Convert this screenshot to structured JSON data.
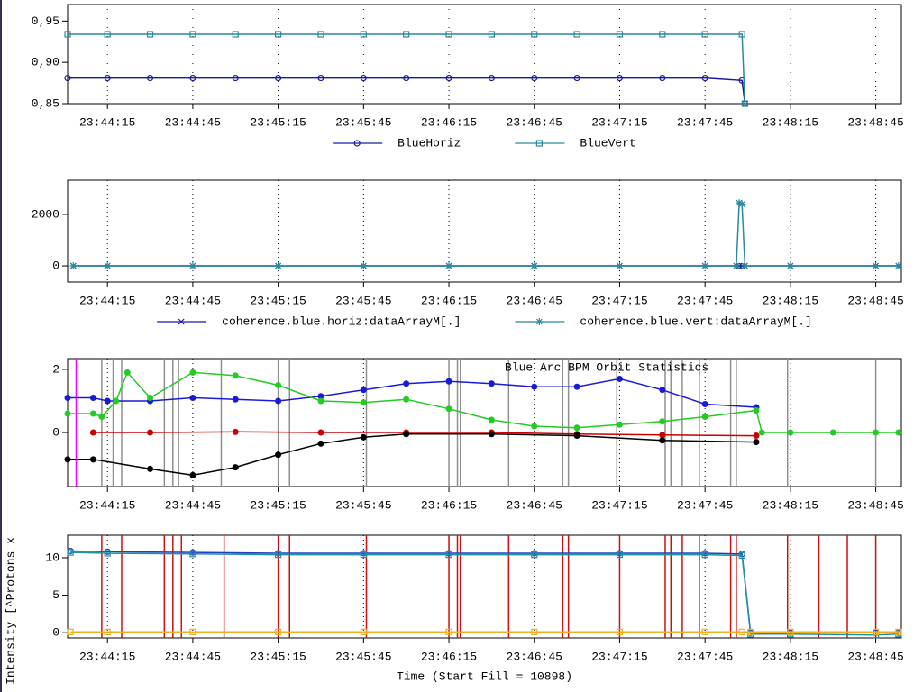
{
  "chart_data": [
    {
      "type": "line",
      "xlim": [
        "23:44:01",
        "23:48:54"
      ],
      "xticks": [
        "23:44:15",
        "23:44:45",
        "23:45:15",
        "23:45:45",
        "23:46:15",
        "23:46:45",
        "23:47:15",
        "23:47:45",
        "23:48:15",
        "23:48:45"
      ],
      "ylim": [
        0.85,
        0.97
      ],
      "yticks": [
        {
          "value": 0.85,
          "label": "0,85"
        },
        {
          "value": 0.9,
          "label": "0,90"
        },
        {
          "value": 0.95,
          "label": "0,95"
        }
      ],
      "x": [
        "23:44:01",
        "23:44:15",
        "23:44:30",
        "23:44:45",
        "23:45:00",
        "23:45:15",
        "23:45:30",
        "23:45:45",
        "23:46:00",
        "23:46:15",
        "23:46:30",
        "23:46:45",
        "23:47:00",
        "23:47:15",
        "23:47:30",
        "23:47:45",
        "23:47:58",
        "23:47:59"
      ],
      "series": [
        {
          "name": "BlueHoriz",
          "color": "#1a1aa0",
          "marker": "circle",
          "values": [
            0.881,
            0.881,
            0.881,
            0.881,
            0.881,
            0.881,
            0.881,
            0.881,
            0.881,
            0.881,
            0.881,
            0.881,
            0.881,
            0.881,
            0.881,
            0.881,
            0.878,
            0.85
          ]
        },
        {
          "name": "BlueVert",
          "color": "#2a8a9a",
          "marker": "square",
          "values": [
            0.934,
            0.934,
            0.934,
            0.934,
            0.934,
            0.934,
            0.934,
            0.934,
            0.934,
            0.934,
            0.934,
            0.934,
            0.934,
            0.934,
            0.934,
            0.934,
            0.934,
            0.85
          ]
        }
      ]
    },
    {
      "type": "line",
      "xlim": [
        "23:44:01",
        "23:48:54"
      ],
      "xticks": [
        "23:44:15",
        "23:44:45",
        "23:45:15",
        "23:45:45",
        "23:46:15",
        "23:46:45",
        "23:47:15",
        "23:47:45",
        "23:48:15",
        "23:48:45"
      ],
      "ylim": [
        -630,
        3330
      ],
      "yticks": [
        0,
        2000
      ],
      "x": [
        "23:44:03",
        "23:44:15",
        "23:44:45",
        "23:45:15",
        "23:45:45",
        "23:46:15",
        "23:46:45",
        "23:47:15",
        "23:47:45",
        "23:47:56",
        "23:47:57",
        "23:47:58",
        "23:47:59",
        "23:48:15",
        "23:48:45",
        "23:48:53"
      ],
      "series": [
        {
          "name": "coherence.blue.horiz:dataArrayM[.]",
          "color": "#1a1aa0",
          "marker": "x",
          "values": [
            0,
            0,
            0,
            0,
            0,
            0,
            0,
            0,
            0,
            0,
            0,
            0,
            0,
            0,
            0,
            0
          ]
        },
        {
          "name": "coherence.blue.vert:dataArrayM[.]",
          "color": "#2a8a9a",
          "marker": "star",
          "values": [
            0,
            0,
            0,
            0,
            0,
            0,
            0,
            0,
            0,
            0,
            2450,
            2400,
            0,
            0,
            0,
            0
          ]
        }
      ]
    },
    {
      "type": "line",
      "annotation": "Blue Arc BPM Orbit Statistics",
      "xlim": [
        "23:44:01",
        "23:48:54"
      ],
      "xticks": [
        "23:44:15",
        "23:44:45",
        "23:45:15",
        "23:45:45",
        "23:46:15",
        "23:46:45",
        "23:47:15",
        "23:47:45",
        "23:48:15",
        "23:48:45"
      ],
      "ylim": [
        -1.71,
        2.34
      ],
      "yticks": [
        0,
        2
      ],
      "vlines": [
        {
          "color": "#909090",
          "x": [
            "23:44:13",
            "23:44:17",
            "23:44:20",
            "23:44:35",
            "23:44:38",
            "23:44:40",
            "23:44:55",
            "23:45:15",
            "23:45:19",
            "23:45:46",
            "23:46:15",
            "23:46:18",
            "23:46:19",
            "23:46:36",
            "23:46:55",
            "23:46:57",
            "23:47:14",
            "23:47:31",
            "23:47:33",
            "23:47:37",
            "23:47:43",
            "23:47:54",
            "23:47:56",
            "23:48:14",
            "23:48:45"
          ]
        },
        {
          "color": "#ff00ff",
          "x": [
            "23:44:04"
          ]
        }
      ],
      "series": [
        {
          "color": "#1a1ad8",
          "marker": "dot",
          "x": [
            "23:44:01",
            "23:44:10",
            "23:44:15",
            "23:44:30",
            "23:44:45",
            "23:45:00",
            "23:45:15",
            "23:45:30",
            "23:45:45",
            "23:46:00",
            "23:46:15",
            "23:46:30",
            "23:46:45",
            "23:47:00",
            "23:47:15",
            "23:47:30",
            "23:47:45",
            "23:48:03"
          ],
          "values": [
            1.1,
            1.1,
            1.0,
            1.0,
            1.1,
            1.05,
            1.0,
            1.15,
            1.35,
            1.55,
            1.62,
            1.55,
            1.45,
            1.45,
            1.7,
            1.35,
            0.9,
            0.8
          ]
        },
        {
          "color": "#22cc22",
          "marker": "dot",
          "x": [
            "23:44:01",
            "23:44:10",
            "23:44:13",
            "23:44:18",
            "23:44:22",
            "23:44:30",
            "23:44:45",
            "23:45:00",
            "23:45:15",
            "23:45:30",
            "23:45:45",
            "23:46:00",
            "23:46:15",
            "23:46:30",
            "23:46:45",
            "23:47:00",
            "23:47:15",
            "23:47:30",
            "23:47:45",
            "23:48:03",
            "23:48:05",
            "23:48:15",
            "23:48:30",
            "23:48:45",
            "23:48:53"
          ],
          "values": [
            0.6,
            0.6,
            0.5,
            1.0,
            1.9,
            1.1,
            1.9,
            1.8,
            1.5,
            1.0,
            0.95,
            1.05,
            0.75,
            0.4,
            0.2,
            0.15,
            0.25,
            0.35,
            0.5,
            0.7,
            0,
            0,
            0,
            0,
            0
          ]
        },
        {
          "color": "#cc0000",
          "marker": "dot",
          "x": [
            "23:44:10",
            "23:44:30",
            "23:45:00",
            "23:45:30",
            "23:46:00",
            "23:46:30",
            "23:47:00",
            "23:47:30",
            "23:48:03"
          ],
          "values": [
            0,
            0,
            0.02,
            0,
            0,
            0,
            -0.05,
            -0.08,
            -0.1
          ]
        },
        {
          "color": "#000000",
          "marker": "dot",
          "x": [
            "23:44:01",
            "23:44:10",
            "23:44:30",
            "23:44:45",
            "23:45:00",
            "23:45:15",
            "23:45:30",
            "23:45:45",
            "23:46:00",
            "23:46:30",
            "23:47:00",
            "23:47:30",
            "23:48:03"
          ],
          "values": [
            -0.85,
            -0.85,
            -1.15,
            -1.35,
            -1.1,
            -0.7,
            -0.35,
            -0.15,
            -0.05,
            -0.05,
            -0.1,
            -0.25,
            -0.3
          ]
        }
      ]
    },
    {
      "type": "line",
      "ylabel": "Intensity [^Protons x",
      "xlabel": "Time (Start Fill = 10898)",
      "xlim": [
        "23:44:01",
        "23:48:54"
      ],
      "xticks": [
        "23:44:15",
        "23:44:45",
        "23:45:15",
        "23:45:45",
        "23:46:15",
        "23:46:45",
        "23:47:15",
        "23:47:45",
        "23:48:15",
        "23:48:45"
      ],
      "ylim": [
        -0.7,
        13
      ],
      "yticks": [
        0,
        5,
        10
      ],
      "vlines": [
        {
          "color": "#cc1010",
          "x": [
            "23:44:13",
            "23:44:20",
            "23:44:35",
            "23:44:38",
            "23:44:41",
            "23:44:56",
            "23:45:15",
            "23:45:19",
            "23:45:46",
            "23:46:15",
            "23:46:18",
            "23:46:19",
            "23:46:36",
            "23:46:55",
            "23:46:57",
            "23:47:15",
            "23:47:31",
            "23:47:33",
            "23:47:37",
            "23:47:43",
            "23:47:54",
            "23:47:56",
            "23:48:14",
            "23:48:25",
            "23:48:35",
            "23:48:45"
          ]
        }
      ],
      "x": [
        "23:44:02",
        "23:44:15",
        "23:44:45",
        "23:45:15",
        "23:45:45",
        "23:46:15",
        "23:46:45",
        "23:47:15",
        "23:47:45",
        "23:47:58",
        "23:48:01",
        "23:48:15",
        "23:48:45",
        "23:48:53"
      ],
      "series": [
        {
          "color": "#2040c0",
          "marker": "circle",
          "values": [
            10.9,
            10.8,
            10.7,
            10.6,
            10.6,
            10.6,
            10.6,
            10.6,
            10.6,
            10.5,
            0,
            0,
            0,
            0
          ]
        },
        {
          "color": "#2090a0",
          "marker": "square",
          "values": [
            10.7,
            10.6,
            10.5,
            10.4,
            10.4,
            10.4,
            10.4,
            10.4,
            10.4,
            10.3,
            -0.2,
            -0.2,
            -0.3,
            -0.2
          ]
        },
        {
          "color": "#f0b020",
          "marker": "square",
          "values": [
            0.1,
            0.1,
            0.1,
            0.1,
            0.1,
            0.1,
            0.1,
            0.1,
            0.1,
            0.1,
            0.1,
            0.1,
            0.1,
            0.1
          ]
        }
      ]
    }
  ]
}
